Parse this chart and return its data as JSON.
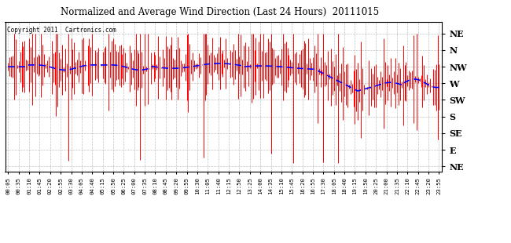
{
  "title": "Normalized and Average Wind Direction (Last 24 Hours)  20111015",
  "copyright_text": "Copyright 2011  Cartronics.com",
  "background_color": "#ffffff",
  "plot_bg_color": "#ffffff",
  "bar_color": "#ff0000",
  "line_color": "#0000ff",
  "grid_color": "#999999",
  "ytick_labels": [
    "NE",
    "N",
    "NW",
    "W",
    "SW",
    "S",
    "SE",
    "E",
    "NE"
  ],
  "ytick_values": [
    8,
    7,
    6,
    5,
    4,
    3,
    2,
    1,
    0
  ],
  "ylim": [
    -0.3,
    8.7
  ],
  "n_points": 288,
  "seed": 12345,
  "x_time_labels": [
    "00:05",
    "00:35",
    "01:10",
    "01:45",
    "02:20",
    "02:55",
    "03:30",
    "04:05",
    "04:40",
    "05:15",
    "05:50",
    "06:25",
    "07:00",
    "07:35",
    "08:10",
    "08:45",
    "09:20",
    "09:55",
    "10:30",
    "11:05",
    "11:40",
    "12:15",
    "12:50",
    "13:25",
    "14:00",
    "14:35",
    "15:10",
    "15:45",
    "16:20",
    "16:55",
    "17:30",
    "18:05",
    "18:40",
    "19:15",
    "19:50",
    "20:25",
    "21:00",
    "21:35",
    "22:10",
    "22:45",
    "23:20",
    "23:55"
  ]
}
